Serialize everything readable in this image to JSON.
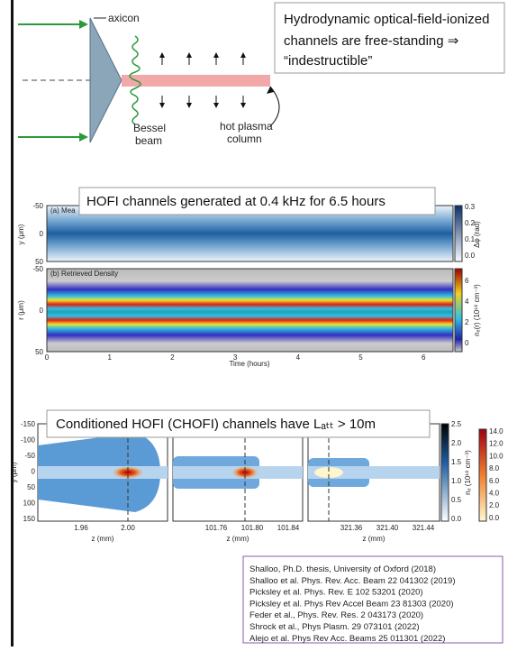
{
  "diagram": {
    "axicon": "axicon",
    "bessel": [
      "Bessel",
      "beam"
    ],
    "plasma": [
      "hot plasma",
      "column"
    ]
  },
  "callouts": [
    [
      "Hydrodynamic optical-field-ionized",
      "channels are free-standing ⇒",
      "“indestructible”"
    ],
    "HOFI channels generated at 0.4 kHz for 6.5 hours",
    "Conditioned HOFI (CHOFI) channels have Lₐₜₜ > 10m"
  ],
  "time_figure": {
    "panel_a": "(a) Mea",
    "panel_b": "(b) Retrieved Density",
    "y_label_a": "y (μm)",
    "y_label_b": "r (μm)",
    "y_ticks": [
      "-50",
      "0",
      "50"
    ],
    "x_ticks": [
      "0",
      "1",
      "2",
      "3",
      "4",
      "5",
      "6"
    ],
    "x_label": "Time (hours)",
    "cbar_a_ticks": [
      "0.3",
      "0.2",
      "0.1",
      "0.0"
    ],
    "cbar_a_label": "Δφ (rad)",
    "cbar_b_ticks": [
      "6",
      "4",
      "2",
      "0"
    ],
    "cbar_b_label": "nₑ(r) (10¹⁸ cm⁻³)"
  },
  "chofi_figure": {
    "y_label": "y (μm)",
    "y_ticks": [
      "-150",
      "-100",
      "-50",
      "0",
      "50",
      "100",
      "150"
    ],
    "panels": [
      [
        "1.96",
        "2.00"
      ],
      [
        "101.76",
        "101.80",
        "101.84"
      ],
      [
        "321.36",
        "321.40",
        "321.44"
      ]
    ],
    "x_label": "z (mm)",
    "cbar1_ticks": [
      "2.5",
      "2.0",
      "1.5",
      "1.0",
      "0.5",
      "0.0"
    ],
    "cbar1_label": "nₑ (10¹⁸ cm⁻³)",
    "cbar2_ticks": [
      "14.0",
      "12.0",
      "10.0",
      "8.0",
      "6.0",
      "4.0",
      "2.0",
      "0.0"
    ]
  },
  "references": [
    "Shalloo, Ph.D. thesis, University of Oxford (2018)",
    "Shalloo et al. Phys. Rev. Acc. Beam 22 041302 (2019)",
    "Picksley et al. Phys. Rev. E 102 53201 (2020)",
    "Picksley et al. Phys Rev Accel Beam 23 81303 (2020)",
    "Feder et al., Phys. Rev. Res. 2 043173 (2020)",
    "Shrock et al., Phys Plasm. 29 073101 (2022)",
    "Alejo et al. Phys Rev Acc. Beams 25 011301 (2022)"
  ]
}
